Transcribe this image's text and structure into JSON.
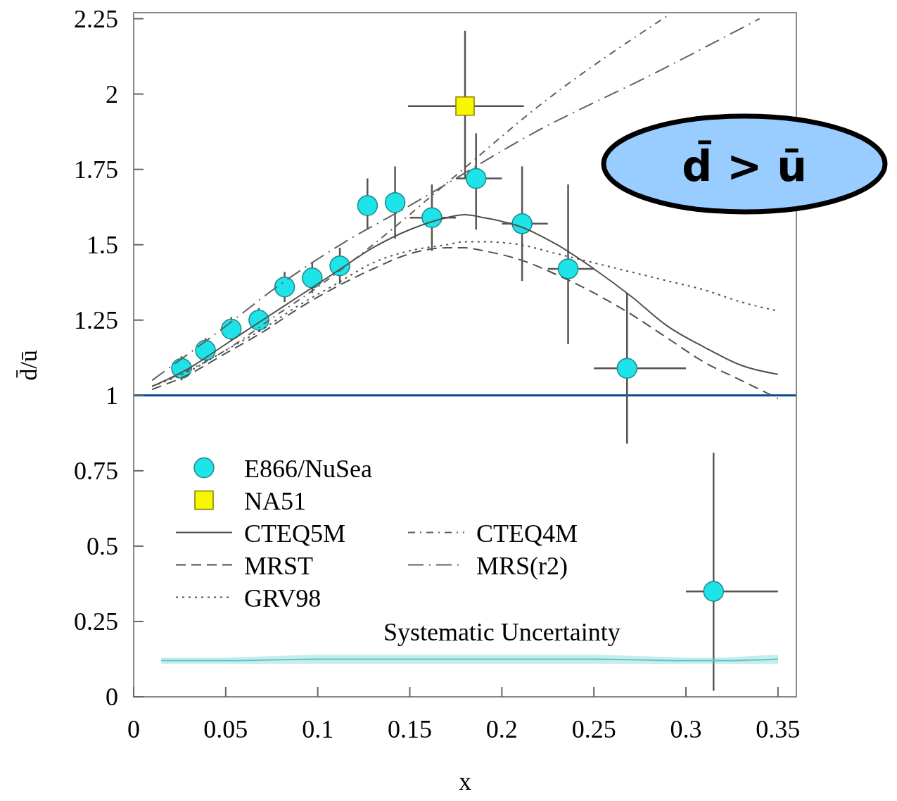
{
  "chart_data": {
    "type": "scatter",
    "xlabel": "x",
    "ylabel": "d̄/ū",
    "xlim": [
      0,
      0.36
    ],
    "ylim": [
      0,
      2.27
    ],
    "xticks": [
      0,
      0.05,
      0.1,
      0.15,
      0.2,
      0.25,
      0.3,
      0.35
    ],
    "yticks": [
      0,
      0.25,
      0.5,
      0.75,
      1,
      1.25,
      1.5,
      1.75,
      2,
      2.25
    ],
    "grid": false,
    "legend": "left",
    "ref_lines": [
      {
        "axis": "y",
        "value": 1,
        "color": "#0a4a94"
      }
    ],
    "annotations": [
      "d̄ > ū"
    ],
    "series": [
      {
        "name": "E866/NuSea",
        "marker": "circle",
        "color": "#1ee3e8",
        "x": [
          0.026,
          0.039,
          0.053,
          0.068,
          0.082,
          0.097,
          0.112,
          0.127,
          0.142,
          0.162,
          0.186,
          0.211,
          0.236,
          0.268,
          0.315
        ],
        "values": [
          1.09,
          1.15,
          1.22,
          1.25,
          1.36,
          1.39,
          1.43,
          1.63,
          1.64,
          1.59,
          1.72,
          1.57,
          1.42,
          1.09,
          0.35
        ],
        "errors": [
          [
            1.05,
            1.13
          ],
          [
            1.11,
            1.19
          ],
          [
            1.18,
            1.26
          ],
          [
            1.21,
            1.29
          ],
          [
            1.31,
            1.41
          ],
          [
            1.34,
            1.44
          ],
          [
            1.37,
            1.49
          ],
          [
            1.55,
            1.72
          ],
          [
            1.52,
            1.76
          ],
          [
            1.48,
            1.7
          ],
          [
            1.55,
            1.87
          ],
          [
            1.38,
            1.76
          ],
          [
            1.17,
            1.7
          ],
          [
            0.84,
            1.34
          ],
          [
            0.02,
            0.81
          ]
        ],
        "xerrors": [
          null,
          null,
          null,
          null,
          null,
          null,
          null,
          null,
          null,
          [
            0.15,
            0.175
          ],
          [
            0.175,
            0.2
          ],
          [
            0.2,
            0.225
          ],
          [
            0.225,
            0.25
          ],
          [
            0.25,
            0.3
          ],
          [
            0.3,
            0.35
          ]
        ]
      },
      {
        "name": "NA51",
        "marker": "square",
        "color": "#f7f700",
        "x": [
          0.18
        ],
        "values": [
          1.96
        ],
        "errors": [
          [
            1.72,
            2.21
          ]
        ],
        "xerrors": [
          [
            0.149,
            0.212
          ]
        ]
      },
      {
        "name": "CTEQ5M",
        "type": "line",
        "line_style": "solid",
        "color": "#505050",
        "x": [
          0.01,
          0.03,
          0.05,
          0.07,
          0.09,
          0.11,
          0.13,
          0.15,
          0.17,
          0.18,
          0.19,
          0.21,
          0.23,
          0.25,
          0.27,
          0.29,
          0.31,
          0.33,
          0.35
        ],
        "values": [
          1.03,
          1.09,
          1.17,
          1.25,
          1.33,
          1.41,
          1.49,
          1.55,
          1.59,
          1.6,
          1.59,
          1.56,
          1.5,
          1.42,
          1.33,
          1.23,
          1.16,
          1.1,
          1.07
        ]
      },
      {
        "name": "MRST",
        "type": "line",
        "line_style": "dashed",
        "color": "#505050",
        "x": [
          0.01,
          0.03,
          0.05,
          0.07,
          0.09,
          0.11,
          0.13,
          0.15,
          0.17,
          0.18,
          0.19,
          0.21,
          0.23,
          0.25,
          0.27,
          0.29,
          0.31,
          0.33,
          0.35
        ],
        "values": [
          1.02,
          1.07,
          1.14,
          1.21,
          1.29,
          1.36,
          1.42,
          1.47,
          1.49,
          1.49,
          1.48,
          1.45,
          1.4,
          1.34,
          1.27,
          1.19,
          1.11,
          1.05,
          0.99
        ]
      },
      {
        "name": "GRV98",
        "type": "line",
        "line_style": "dotted",
        "color": "#505050",
        "x": [
          0.01,
          0.03,
          0.05,
          0.07,
          0.09,
          0.11,
          0.13,
          0.15,
          0.17,
          0.18,
          0.19,
          0.21,
          0.23,
          0.25,
          0.27,
          0.29,
          0.31,
          0.33,
          0.35
        ],
        "values": [
          1.03,
          1.08,
          1.15,
          1.22,
          1.3,
          1.37,
          1.44,
          1.48,
          1.5,
          1.51,
          1.51,
          1.5,
          1.47,
          1.44,
          1.41,
          1.38,
          1.35,
          1.31,
          1.28
        ]
      },
      {
        "name": "CTEQ4M",
        "type": "line",
        "line_style": "dashdot",
        "color": "#606060",
        "x": [
          0.01,
          0.05,
          0.076,
          0.1,
          0.13,
          0.175,
          0.22,
          0.29
        ],
        "values": [
          1.03,
          1.15,
          1.26,
          1.36,
          1.5,
          1.73,
          1.96,
          2.26
        ]
      },
      {
        "name": "MRS(r2)",
        "type": "line",
        "line_style": "longdashdot",
        "color": "#606060",
        "x": [
          0.01,
          0.05,
          0.08,
          0.115,
          0.15,
          0.22,
          0.28,
          0.34
        ],
        "values": [
          1.05,
          1.23,
          1.37,
          1.51,
          1.63,
          1.88,
          2.06,
          2.25
        ]
      },
      {
        "name": "Systematic Uncertainty",
        "type": "line",
        "line_style": "solid",
        "color": "#5cc8c8",
        "x": [
          0.015,
          0.05,
          0.1,
          0.15,
          0.2,
          0.25,
          0.3,
          0.32,
          0.35
        ],
        "values": [
          0.12,
          0.12,
          0.125,
          0.125,
          0.125,
          0.125,
          0.12,
          0.12,
          0.125
        ],
        "lower": [
          0.11,
          0.11,
          0.11,
          0.11,
          0.11,
          0.11,
          0.11,
          0.11,
          0.11
        ],
        "upper": [
          0.13,
          0.13,
          0.14,
          0.14,
          0.14,
          0.14,
          0.13,
          0.13,
          0.14
        ]
      }
    ]
  }
}
